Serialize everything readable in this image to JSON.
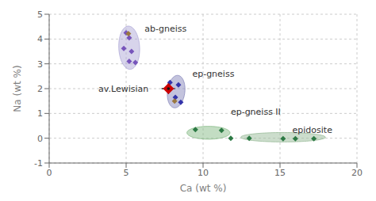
{
  "chart_data": {
    "type": "scatter",
    "xlabel": "Ca (wt %)",
    "ylabel": "Na (wt %)",
    "xlim": [
      0,
      20
    ],
    "ylim": [
      -1,
      5
    ],
    "xticks": [
      0,
      5,
      10,
      15,
      20
    ],
    "yticks": [
      -1,
      0,
      1,
      2,
      3,
      4,
      5
    ],
    "grid": true,
    "ellipses": [
      {
        "cx": 5.2,
        "cy": 3.65,
        "width": 1.35,
        "height": 1.75,
        "angle": 8,
        "color": "#b0aad8"
      },
      {
        "cx": 8.25,
        "cy": 1.88,
        "width": 1.1,
        "height": 1.35,
        "angle": -25,
        "color": "#8888bb"
      },
      {
        "cx": 10.35,
        "cy": 0.22,
        "width": 2.8,
        "height": 0.52,
        "angle": 0,
        "color": "#88bb88"
      },
      {
        "cx": 15.2,
        "cy": 0.04,
        "width": 5.5,
        "height": 0.38,
        "angle": 0,
        "color": "#99bb99"
      }
    ],
    "series": [
      {
        "points": [
          [
            5.0,
            4.25
          ],
          [
            5.2,
            4.05
          ],
          [
            4.85,
            3.62
          ],
          [
            5.35,
            3.5
          ],
          [
            5.2,
            3.1
          ],
          [
            5.6,
            3.05
          ]
        ],
        "color": "#7755bb",
        "marker": "diamond"
      },
      {
        "points": [
          [
            5.15,
            4.22
          ]
        ],
        "color": "#9a7840",
        "marker": "diamond"
      },
      {
        "points": [
          [
            7.85,
            2.25
          ],
          [
            8.4,
            2.15
          ],
          [
            8.2,
            1.65
          ],
          [
            8.55,
            1.45
          ]
        ],
        "color": "#3333aa",
        "marker": "diamond"
      },
      {
        "points": [
          [
            8.15,
            1.5
          ]
        ],
        "color": "#9a7840",
        "marker": "diamond"
      },
      {
        "points": [
          [
            9.5,
            0.35
          ],
          [
            11.2,
            0.32
          ]
        ],
        "color": "#2d7a45",
        "marker": "diamond"
      },
      {
        "points": [
          [
            11.8,
            0.0
          ],
          [
            13.0,
            0.0
          ],
          [
            15.2,
            -0.02
          ],
          [
            16.0,
            -0.02
          ],
          [
            17.2,
            -0.02
          ]
        ],
        "color": "#2d7a45",
        "marker": "diamond"
      },
      {
        "points": [
          [
            7.75,
            2.0
          ]
        ],
        "color": "#cc0000",
        "marker": "diamond",
        "xerr": 0.45,
        "yerr": 0.22
      },
      {
        "points": [
          [
            7.75,
            2.0
          ]
        ],
        "color": "#111111",
        "marker": "circle"
      }
    ],
    "annotations": [
      {
        "text": "ab-gneiss",
        "x": 6.2,
        "y": 4.4
      },
      {
        "text": "ep-gneiss",
        "x": 9.3,
        "y": 2.6
      },
      {
        "text": "ep-gneiss II",
        "x": 11.8,
        "y": 1.05
      },
      {
        "text": "epidosite",
        "x": 15.8,
        "y": 0.32
      },
      {
        "text": "av.Lewisian",
        "x": 3.2,
        "y": 2.0
      }
    ]
  }
}
